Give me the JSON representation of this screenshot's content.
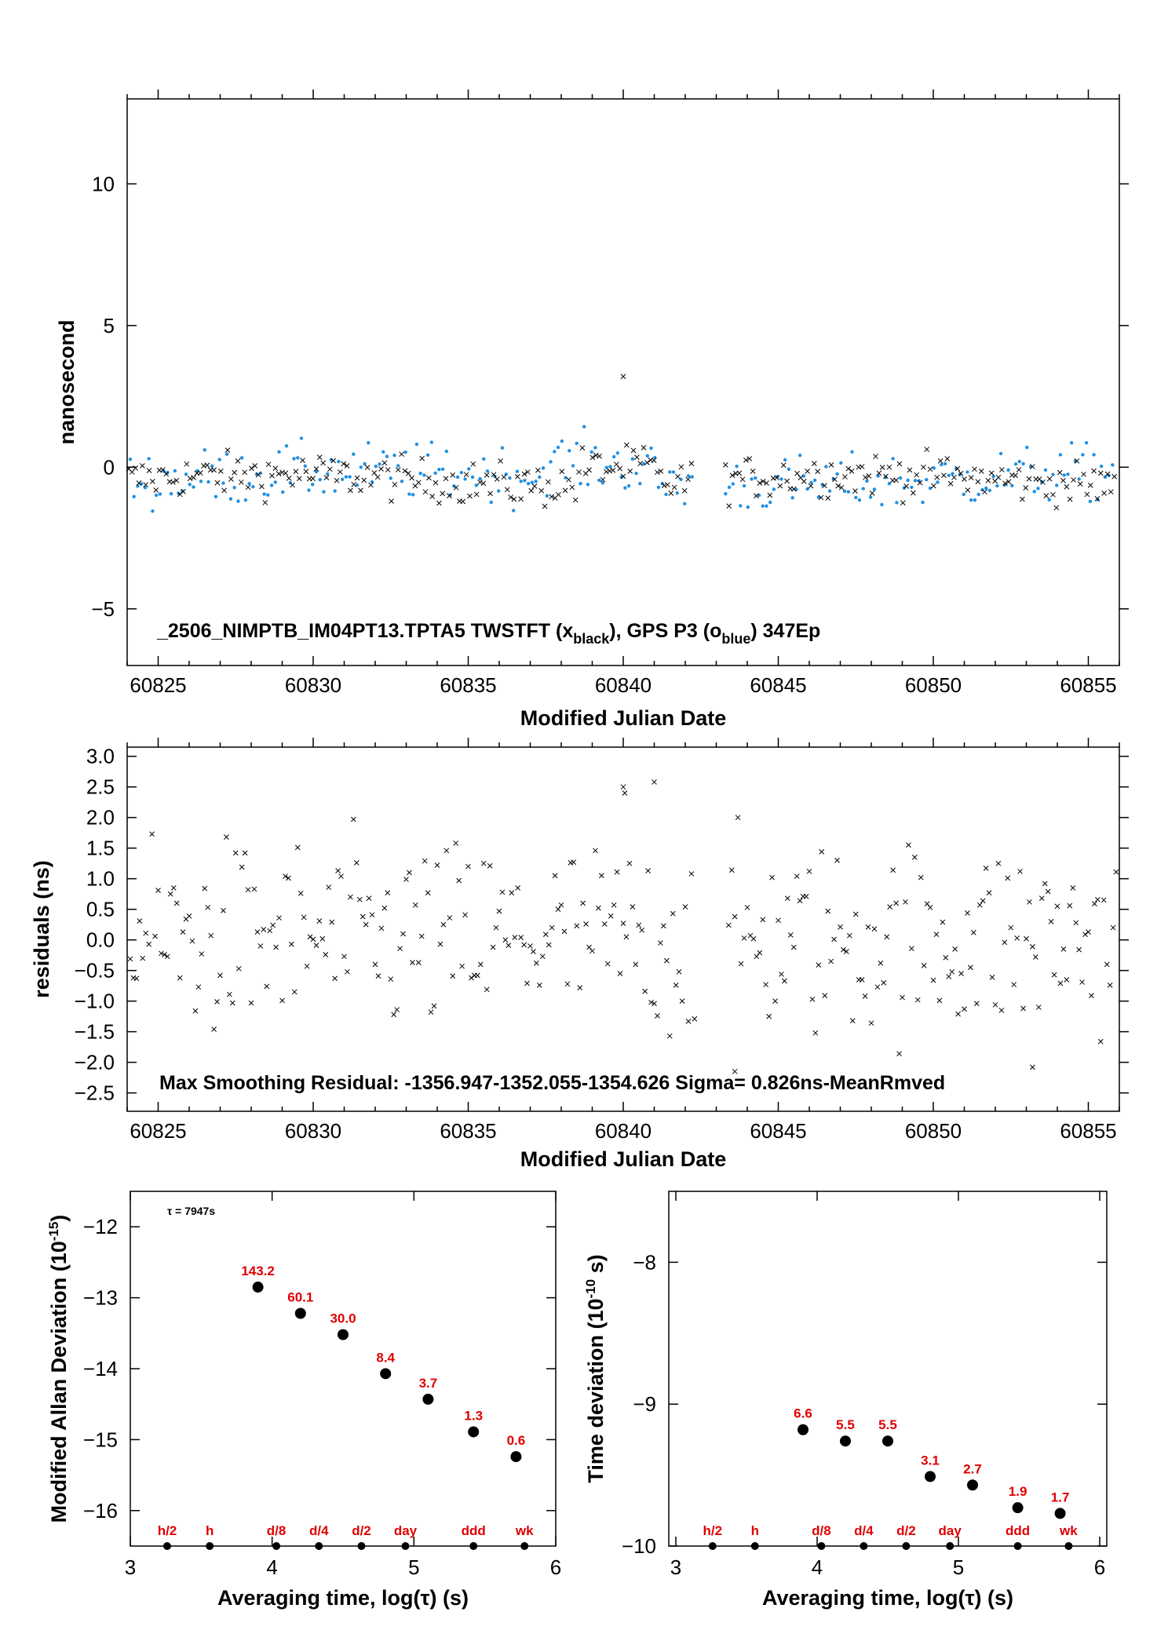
{
  "chart_data": [
    {
      "type": "scatter",
      "title": "_2506_NIMPTB_IM04PT13.TPTA5     TWSTFT (x",
      "title_sub1": "black",
      "title_mid": "),  GPS P3 (o",
      "title_sub2": "blue",
      "title_end": ")  347Ep",
      "xlabel": "Modified Julian Date",
      "ylabel": "nanosecond",
      "xlim": [
        60824,
        60856
      ],
      "ylim": [
        -7,
        13
      ],
      "xticks": [
        "60825",
        "60830",
        "60835",
        "60840",
        "60845",
        "60850",
        "60855"
      ],
      "yticks": [
        "−5",
        "0",
        "5",
        "10"
      ],
      "series": [],
      "points": {
        "twstft": [],
        "gps": []
      },
      "colors": {
        "twstft": "#000000",
        "gps": "#2090e0"
      }
    },
    {
      "type": "scatter",
      "xlabel": "Modified Julian Date",
      "ylabel": "residuals (ns)",
      "annotation": "Max Smoothing Residual: -1356.947-1352.055-1354.626  Sigma= 0.826ns-MeanRmved",
      "xlim": [
        60824,
        60856
      ],
      "ylim": [
        -2.8,
        3.15
      ],
      "xticks": [
        "60825",
        "60830",
        "60835",
        "60840",
        "60845",
        "60850",
        "60855"
      ],
      "yticks": [
        "−2.5",
        "−2.0",
        "−1.5",
        "−1.0",
        "−0.5",
        "0.0",
        "0.5",
        "1.0",
        "1.5",
        "2.0",
        "2.5",
        "3.0"
      ],
      "residuals": []
    },
    {
      "type": "scatter",
      "xlabel": "Averaging time, log(τ) (s)",
      "ylabel": "Modified Allan Deviation (10",
      "ylabel_exp": "-15",
      "ylabel_end": ")",
      "tau_note": "τ = 7947s",
      "xlim": [
        3,
        6
      ],
      "ylim": [
        -16.5,
        -11.5
      ],
      "xticks": [
        "3",
        "4",
        "5",
        "6"
      ],
      "yticks": [
        "−16",
        "−15",
        "−14",
        "−13",
        "−12"
      ],
      "x": [
        3.9,
        4.2,
        4.5,
        4.8,
        5.1,
        5.42,
        5.72
      ],
      "y": [
        -12.85,
        -13.22,
        -13.52,
        -14.07,
        -14.43,
        -14.89,
        -15.24
      ],
      "labels": [
        "143.2",
        "60.1",
        "30.0",
        "8.4",
        "3.7",
        "1.3",
        "0.6"
      ],
      "markers_x": [
        3.26,
        3.56,
        4.03,
        4.33,
        4.63,
        4.94,
        5.42,
        5.78
      ],
      "markers": [
        "h/2",
        "h",
        "d/8",
        "d/4",
        "d/2",
        "day",
        "ddd",
        "wk"
      ],
      "label_color": "#e00000"
    },
    {
      "type": "scatter",
      "xlabel": "Averaging time, log(τ) (s)",
      "ylabel": "Time deviation (10",
      "ylabel_exp": "-10",
      "ylabel_end": " s)",
      "xlim": [
        2.95,
        6.05
      ],
      "ylim": [
        -10,
        -7.5
      ],
      "xticks": [
        "3",
        "4",
        "5",
        "6"
      ],
      "yticks": [
        "−10",
        "−9",
        "−8"
      ],
      "x": [
        3.9,
        4.2,
        4.5,
        4.8,
        5.1,
        5.42,
        5.72
      ],
      "y": [
        -9.18,
        -9.26,
        -9.26,
        -9.51,
        -9.57,
        -9.73,
        -9.77
      ],
      "labels": [
        "6.6",
        "5.5",
        "5.5",
        "3.1",
        "2.7",
        "1.9",
        "1.7"
      ],
      "markers_x": [
        3.26,
        3.56,
        4.03,
        4.33,
        4.63,
        4.94,
        5.42,
        5.78
      ],
      "markers": [
        "h/2",
        "h",
        "d/8",
        "d/4",
        "d/2",
        "day",
        "ddd",
        "wk"
      ],
      "label_color": "#e00000"
    }
  ]
}
